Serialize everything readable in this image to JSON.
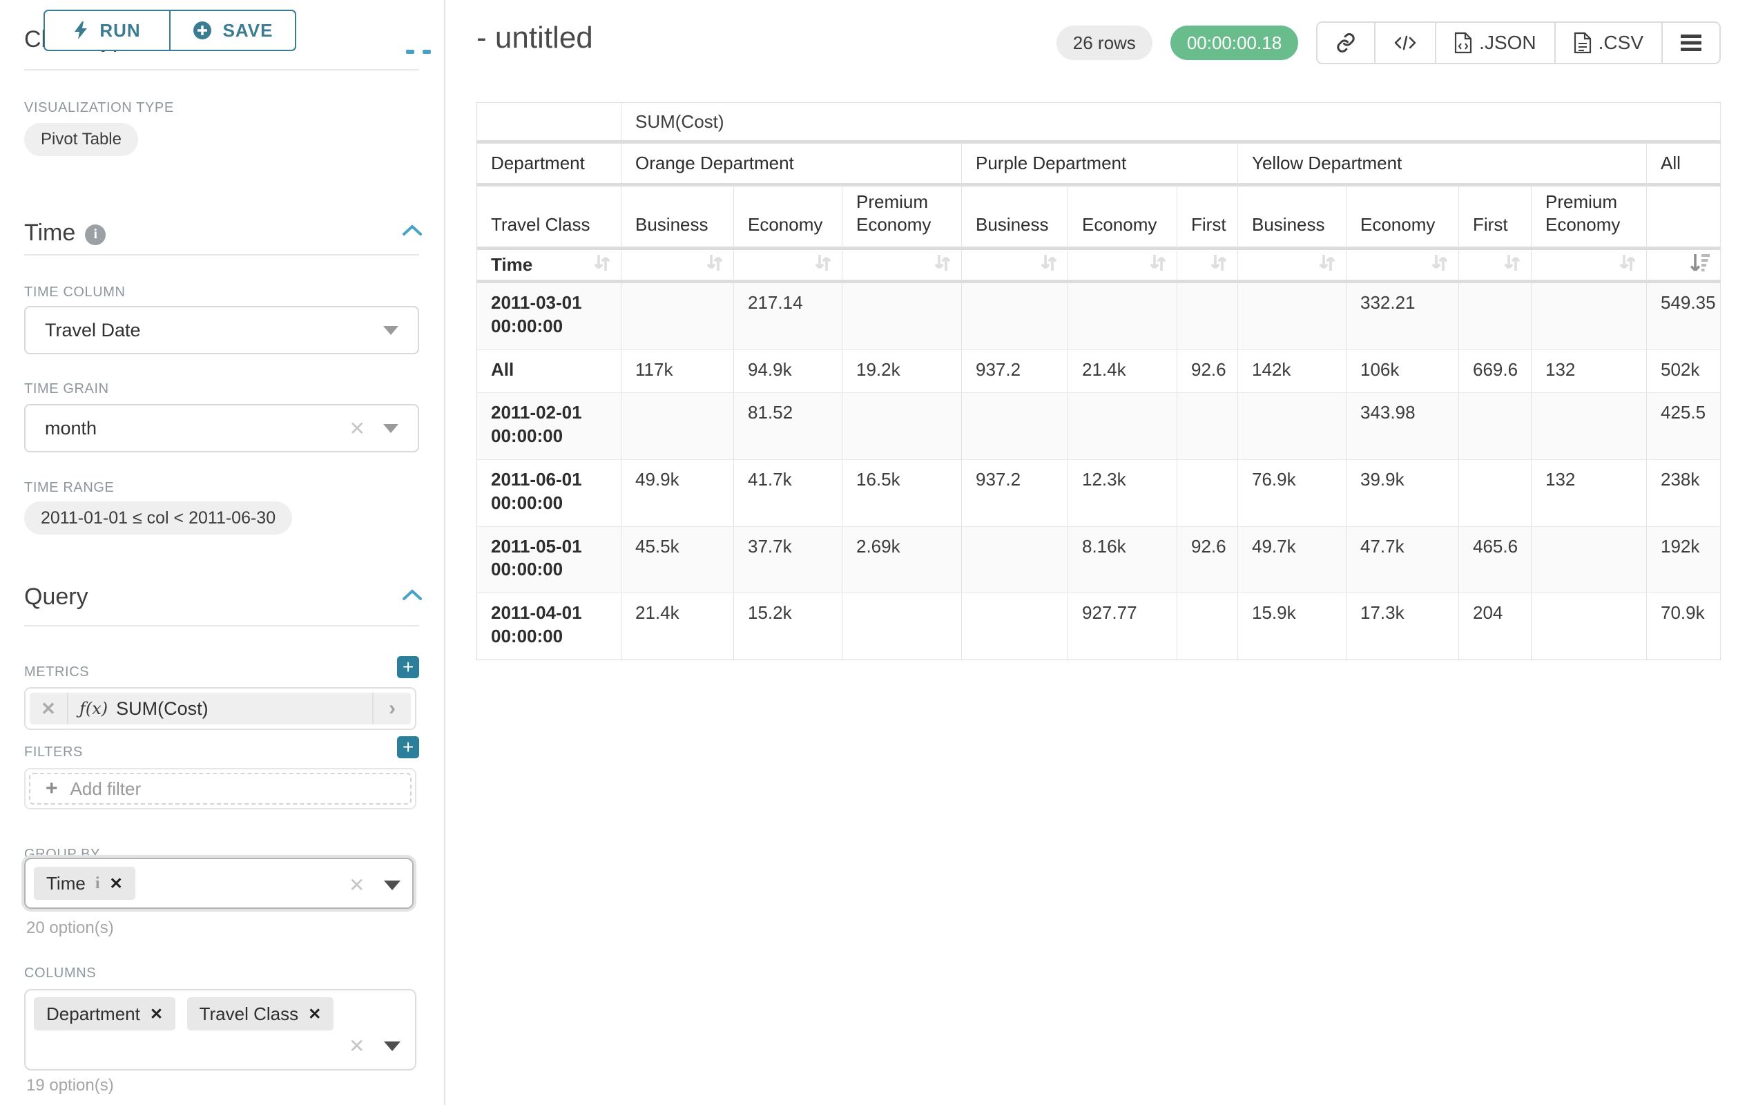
{
  "colors": {
    "accent_teal": "#3b7c92",
    "accent_teal_strong": "#2c7f9b",
    "accent_blue": "#4aa0c2",
    "success_green": "#69bd8c",
    "pill_gray": "#efefef",
    "border_gray": "#d9d9d9"
  },
  "sidebar": {
    "run_label": "RUN",
    "save_label": "SAVE",
    "chart_type_heading": "Chart Type",
    "viz_type_label": "VISUALIZATION TYPE",
    "viz_type_value": "Pivot Table",
    "time_section_heading": "Time",
    "time_column_label": "TIME COLUMN",
    "time_column_value": "Travel Date",
    "time_grain_label": "TIME GRAIN",
    "time_grain_value": "month",
    "time_range_label": "TIME RANGE",
    "time_range_value": "2011-01-01 ≤ col < 2011-06-30",
    "query_section_heading": "Query",
    "metrics_label": "METRICS",
    "metric_prefix": "ƒ(x)",
    "metric_value": "SUM(Cost)",
    "filters_label": "FILTERS",
    "add_filter_label": "Add filter",
    "group_by_label": "GROUP BY",
    "group_by_tag": "Time",
    "group_by_hint": "20 option(s)",
    "columns_label": "COLUMNS",
    "columns_tag_1": "Department",
    "columns_tag_2": "Travel Class",
    "columns_hint": "19 option(s)"
  },
  "header": {
    "title": "- untitled",
    "rows_badge": "26 rows",
    "timer_badge": "00:00:00.18",
    "json_label": ".JSON",
    "csv_label": ".CSV"
  },
  "table": {
    "metric_header": "SUM(Cost)",
    "row1_dim": "Department",
    "row2_dim": "Travel Class",
    "row3_dim": "Time",
    "groups": [
      {
        "label": "Orange Department",
        "span": 3
      },
      {
        "label": "Purple Department",
        "span": 3
      },
      {
        "label": "Yellow Department",
        "span": 4
      },
      {
        "label": "All",
        "span": 1
      }
    ],
    "leaf_cols": [
      "Business",
      "Economy",
      "Premium Economy",
      "Business",
      "Economy",
      "First",
      "Business",
      "Economy",
      "First",
      "Premium Economy",
      ""
    ],
    "rows": [
      {
        "label": "2011-03-01 00:00:00",
        "values": [
          "",
          "217.14",
          "",
          "",
          "",
          "",
          "",
          "332.21",
          "",
          "",
          "549.35"
        ]
      },
      {
        "label": "All",
        "values": [
          "117k",
          "94.9k",
          "19.2k",
          "937.2",
          "21.4k",
          "92.6",
          "142k",
          "106k",
          "669.6",
          "132",
          "502k"
        ]
      },
      {
        "label": "2011-02-01 00:00:00",
        "values": [
          "",
          "81.52",
          "",
          "",
          "",
          "",
          "",
          "343.98",
          "",
          "",
          "425.5"
        ]
      },
      {
        "label": "2011-06-01 00:00:00",
        "values": [
          "49.9k",
          "41.7k",
          "16.5k",
          "937.2",
          "12.3k",
          "",
          "76.9k",
          "39.9k",
          "",
          "132",
          "238k"
        ]
      },
      {
        "label": "2011-05-01 00:00:00",
        "values": [
          "45.5k",
          "37.7k",
          "2.69k",
          "",
          "8.16k",
          "92.6",
          "49.7k",
          "47.7k",
          "465.6",
          "",
          "192k"
        ]
      },
      {
        "label": "2011-04-01 00:00:00",
        "values": [
          "21.4k",
          "15.2k",
          "",
          "",
          "927.77",
          "",
          "15.9k",
          "17.3k",
          "204",
          "",
          "70.9k"
        ]
      }
    ]
  }
}
